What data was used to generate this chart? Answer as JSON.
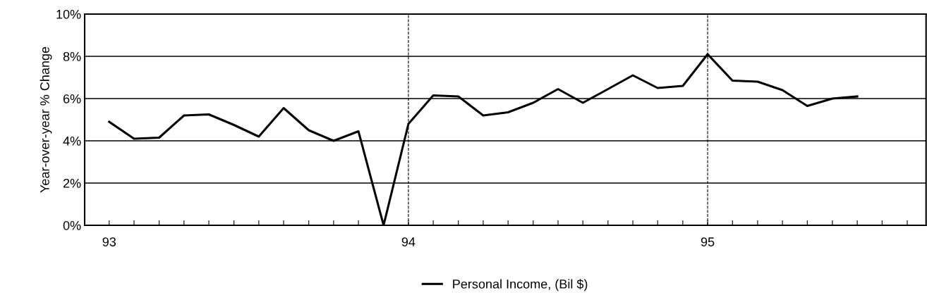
{
  "chart_data": {
    "type": "line",
    "ylabel": "Year-over-year % Change",
    "x": [
      93,
      93.083,
      93.167,
      93.25,
      93.333,
      93.417,
      93.5,
      93.583,
      93.667,
      93.75,
      93.833,
      93.917,
      94,
      94.083,
      94.167,
      94.25,
      94.333,
      94.417,
      94.5,
      94.583,
      94.667,
      94.75,
      94.833,
      94.917,
      95,
      95.083,
      95.167,
      95.25,
      95.333,
      95.417,
      95.5
    ],
    "series": [
      {
        "name": "Personal Income, (Bil $)",
        "color": "#000000",
        "values": [
          4.9,
          4.1,
          4.15,
          5.2,
          5.25,
          4.75,
          4.2,
          5.55,
          4.5,
          4.0,
          4.45,
          0.0,
          4.8,
          6.15,
          6.1,
          5.2,
          5.35,
          5.8,
          6.45,
          5.8,
          6.45,
          7.1,
          6.5,
          6.6,
          8.1,
          6.85,
          6.8,
          6.4,
          5.65,
          6.0,
          6.1
        ]
      }
    ],
    "xlim": [
      92.918,
      95.73
    ],
    "ylim": [
      0,
      10
    ],
    "xticks": [
      93,
      {
        "value": 93.083,
        "label": null
      },
      {
        "value": 93.167,
        "label": null
      },
      {
        "value": 93.25,
        "label": null
      },
      {
        "value": 93.333,
        "label": null
      },
      {
        "value": 93.417,
        "label": null
      },
      {
        "value": 93.5,
        "label": null
      },
      {
        "value": 93.583,
        "label": null
      },
      {
        "value": 93.667,
        "label": null
      },
      {
        "value": 93.75,
        "label": null
      },
      {
        "value": 93.833,
        "label": null
      },
      {
        "value": 93.917,
        "label": null
      },
      94,
      {
        "value": 94.083,
        "label": null
      },
      {
        "value": 94.167,
        "label": null
      },
      {
        "value": 94.25,
        "label": null
      },
      {
        "value": 94.333,
        "label": null
      },
      {
        "value": 94.417,
        "label": null
      },
      {
        "value": 94.5,
        "label": null
      },
      {
        "value": 94.583,
        "label": null
      },
      {
        "value": 94.667,
        "label": null
      },
      {
        "value": 94.75,
        "label": null
      },
      {
        "value": 94.833,
        "label": null
      },
      {
        "value": 94.917,
        "label": null
      },
      95,
      {
        "value": 95.083,
        "label": null
      },
      {
        "value": 95.167,
        "label": null
      },
      {
        "value": 95.25,
        "label": null
      },
      {
        "value": 95.333,
        "label": null
      },
      {
        "value": 95.417,
        "label": null
      },
      {
        "value": 95.5,
        "label": null
      },
      {
        "value": 95.583,
        "label": null
      },
      {
        "value": 95.667,
        "label": null
      }
    ],
    "yticks": [
      {
        "value": 0,
        "label": "0%"
      },
      {
        "value": 2,
        "label": "2%"
      },
      {
        "value": 4,
        "label": "4%"
      },
      {
        "value": 6,
        "label": "6%"
      },
      {
        "value": 8,
        "label": "8%"
      },
      {
        "value": 10,
        "label": "10%"
      }
    ],
    "ref_lines": [
      {
        "axis": "x",
        "value": 94,
        "color": "#000000",
        "line_style": "dashed"
      },
      {
        "axis": "x",
        "value": 95,
        "color": "#000000",
        "line_style": "dashed"
      }
    ],
    "grid": "y",
    "legend": "bottom",
    "marker": "none",
    "line_style": "solid"
  }
}
